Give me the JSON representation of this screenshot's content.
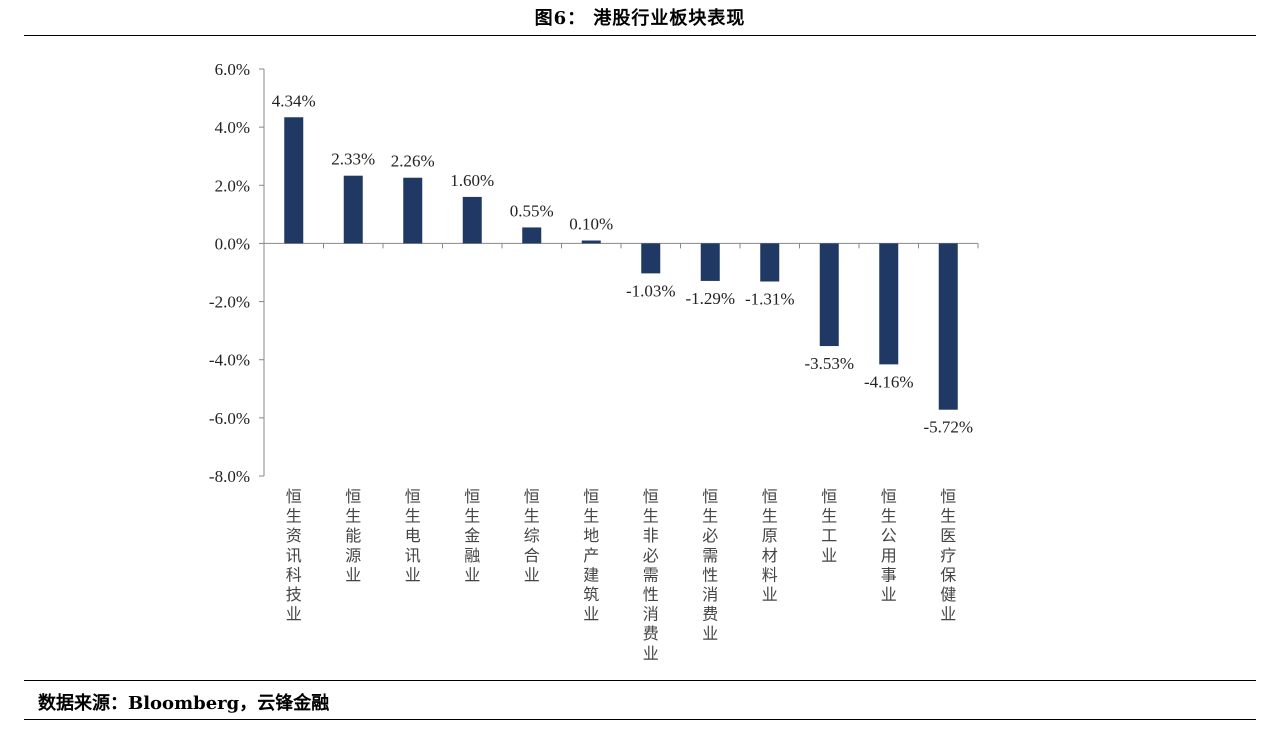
{
  "figure": {
    "title": "图6： 港股行业板块表现",
    "source": "数据来源：Bloomberg，云锋金融"
  },
  "chart_data": {
    "type": "bar",
    "title": "港股行业板块表现",
    "xlabel": "",
    "ylabel": "",
    "ylim": [
      -8.0,
      6.0
    ],
    "yticks": [
      6.0,
      4.0,
      2.0,
      0.0,
      -2.0,
      -4.0,
      -6.0,
      -8.0
    ],
    "ytick_labels": [
      "6.0%",
      "4.0%",
      "2.0%",
      "0.0%",
      "-2.0%",
      "-4.0%",
      "-6.0%",
      "-8.0%"
    ],
    "categories": [
      "恒生资讯科技业",
      "恒生能源业",
      "恒生电讯业",
      "恒生金融业",
      "恒生综合业",
      "恒生地产建筑业",
      "恒生非必需性消费业",
      "恒生必需性消费业",
      "恒生原材料业",
      "恒生工业",
      "恒生公用事业",
      "恒生医疗保健业"
    ],
    "values": [
      4.34,
      2.33,
      2.26,
      1.6,
      0.55,
      0.1,
      -1.03,
      -1.29,
      -1.31,
      -3.53,
      -4.16,
      -5.72
    ],
    "value_labels": [
      "4.34%",
      "2.33%",
      "2.26%",
      "1.60%",
      "0.55%",
      "0.10%",
      "-1.03%",
      "-1.29%",
      "-1.31%",
      "-3.53%",
      "-4.16%",
      "-5.72%"
    ],
    "bar_color": "#1f3864",
    "grid": false,
    "legend": "none"
  }
}
